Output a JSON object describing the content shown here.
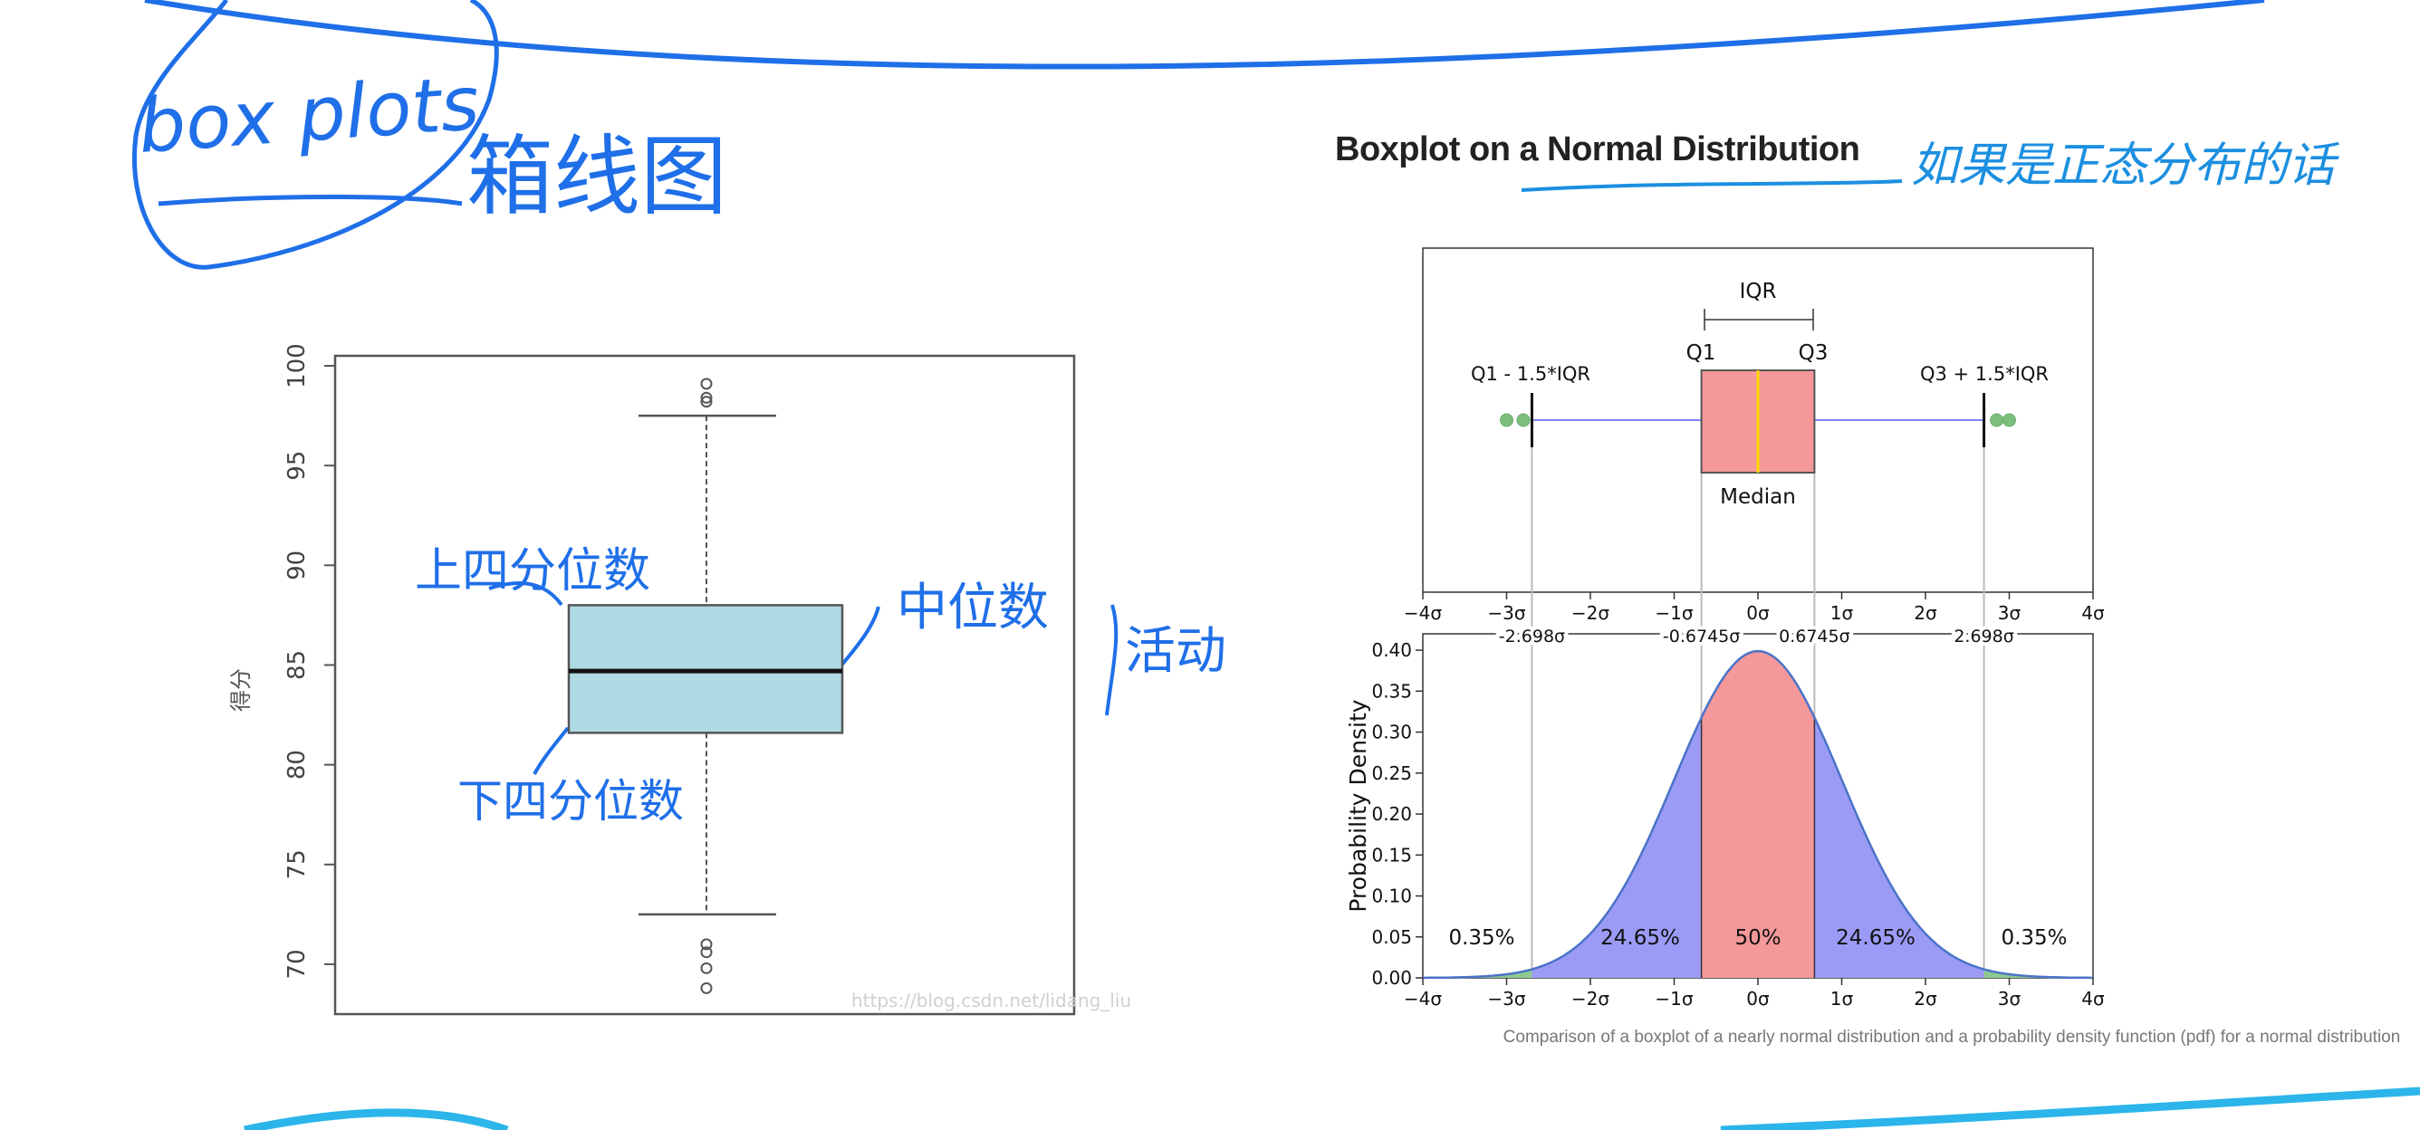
{
  "handwritten": {
    "box_plots": "box plots",
    "box_plots_cn": "箱线图",
    "upper_quartile": "上四分位数",
    "lower_quartile": "下四分位数",
    "median": "中位数",
    "whisker_note": "活动",
    "normal_note": "如果是正态分布的话"
  },
  "left_plot": {
    "ylabel": "得分",
    "yticks": [
      "100",
      "95",
      "90",
      "85",
      "80",
      "75",
      "70"
    ],
    "watermark": "https://blog.csdn.net/lidang_liu"
  },
  "right_panel": {
    "title": "Boxplot on a Normal Distribution",
    "iqr": "IQR",
    "q1": "Q1",
    "q3": "Q3",
    "lower_fence": "Q1 - 1.5*IQR",
    "upper_fence": "Q3 + 1.5*IQR",
    "median": "Median",
    "sigma_ticks": [
      "−4σ",
      "−3σ",
      "−2σ",
      "−1σ",
      "0σ",
      "1σ",
      "2σ",
      "3σ",
      "4σ"
    ],
    "sigma_labels": [
      "-2.698σ",
      "-0.6745σ",
      "0.6745σ",
      "2.698σ"
    ],
    "ylabel": "Probability Density",
    "yticks": [
      "0.40",
      "0.35",
      "0.30",
      "0.25",
      "0.20",
      "0.15",
      "0.10",
      "0.05",
      "0.00"
    ],
    "pct_labels": [
      "0.35%",
      "24.65%",
      "50%",
      "24.65%",
      "0.35%"
    ],
    "caption": "Comparison of a boxplot of a nearly normal distribution and a probability density function (pdf) for a normal distribution"
  },
  "chart_data": [
    {
      "type": "box",
      "ylabel": "得分",
      "ylim": [
        68,
        100
      ],
      "q1": 81.6,
      "median": 84.7,
      "q3": 88.0,
      "whisker_low": 72.5,
      "whisker_high": 97.5,
      "outliers": [
        98.2,
        98.4,
        99.1,
        71.0,
        70.6,
        69.8,
        68.8
      ]
    },
    {
      "type": "box",
      "xlim": [
        -4,
        4
      ],
      "q1": -0.6745,
      "median": 0,
      "q3": 0.6745,
      "whisker_low": -2.698,
      "whisker_high": 2.698,
      "outliers": [
        -3.0,
        -2.8,
        2.85,
        3.0
      ],
      "colors": {
        "box": "#f4989a",
        "whisker": "#8080ff",
        "median": "#ffd700",
        "outlier": "#7cbf7c"
      }
    },
    {
      "type": "area",
      "xlim": [
        -4,
        4
      ],
      "ylim": [
        0,
        0.42
      ],
      "ylabel": "Probability Density",
      "regions": [
        {
          "from": -4,
          "to": -2.698,
          "percent": "0.35%",
          "color": "#8fc98f"
        },
        {
          "from": -2.698,
          "to": -0.6745,
          "percent": "24.65%",
          "color": "#9b9bf6"
        },
        {
          "from": -0.6745,
          "to": 0.6745,
          "percent": "50%",
          "color": "#f4989a"
        },
        {
          "from": 0.6745,
          "to": 2.698,
          "percent": "24.65%",
          "color": "#9b9bf6"
        },
        {
          "from": 2.698,
          "to": 4,
          "percent": "0.35%",
          "color": "#8fc98f"
        }
      ]
    }
  ],
  "colors": {
    "ink": "#1f6fe8",
    "cyan": "#2bb5ea",
    "box_left": "#b0dae3"
  }
}
